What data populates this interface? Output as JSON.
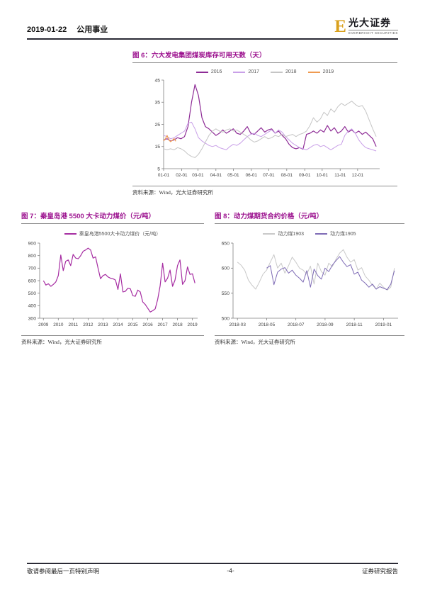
{
  "header": {
    "date": "2019-01-22",
    "section": "公用事业",
    "logo": {
      "symbol": "E",
      "name": "光大证券",
      "subtitle": "EVERBRIGHT SECURITIES",
      "gold": "#D9A01C"
    }
  },
  "accent_color": "#9C128F",
  "chart_data": [
    {
      "id": "fig6",
      "type": "line",
      "title": "图 6：六大发电集团煤炭库存可用天数（天）",
      "source": "资料来源：Wind，光大证券研究所",
      "legend_position": "top-center",
      "grid": false,
      "x_axis": {
        "min": 0,
        "max": 372,
        "tick_positions": [
          0,
          31,
          59,
          90,
          120,
          151,
          181,
          212,
          243,
          273,
          304,
          334
        ],
        "tick_labels": [
          "01-01",
          "02-01",
          "03-01",
          "04-01",
          "05-01",
          "06-01",
          "07-01",
          "08-01",
          "09-01",
          "10-01",
          "11-01",
          "12-01"
        ]
      },
      "y_axis": {
        "min": 5,
        "max": 45,
        "ticks": [
          5,
          15,
          25,
          35,
          45
        ]
      },
      "series": [
        {
          "name": "2016",
          "color": "#8E2C96",
          "width": 1.2,
          "x_start": 0,
          "x_step": 6,
          "values": [
            18,
            18.5,
            17.5,
            18,
            19,
            18.5,
            19.5,
            24,
            35,
            43,
            38,
            28,
            24,
            23,
            21.5,
            20,
            21,
            22.5,
            21,
            22,
            23,
            21,
            20.5,
            22,
            24,
            21,
            20.5,
            22,
            23.5,
            21.5,
            22.5,
            23,
            21,
            22,
            20,
            18.5,
            16,
            14.5,
            14,
            14.5,
            13.8,
            20.5,
            21,
            22,
            21,
            22.5,
            21.5,
            24.5,
            22,
            23.5,
            21,
            22,
            24,
            21.5,
            22.5,
            21,
            22,
            20.5,
            21.5,
            20,
            18.5,
            15
          ]
        },
        {
          "name": "2017",
          "color": "#C9A0E8",
          "width": 1,
          "x_start": 0,
          "x_step": 6,
          "values": [
            20,
            19.5,
            18.5,
            19,
            20,
            21,
            22,
            25.5,
            26,
            23,
            19,
            17.5,
            16.5,
            15.5,
            15,
            15.5,
            14.5,
            14,
            13.5,
            15,
            16,
            15.5,
            16.5,
            18,
            19.5,
            20.5,
            21,
            20,
            19.5,
            20.5,
            21.5,
            22.5,
            21,
            22.5,
            21.5,
            19.5,
            18,
            16.5,
            15.5,
            14.5,
            14,
            13.5,
            14.5,
            15.5,
            16,
            15,
            15.5,
            14.5,
            13.5,
            14.5,
            15.5,
            16,
            20,
            22,
            23,
            21,
            18,
            16,
            14.5,
            14,
            13.5,
            13
          ]
        },
        {
          "name": "2018",
          "color": "#C5C5C5",
          "width": 1,
          "x_start": 0,
          "x_step": 6,
          "values": [
            14,
            13.5,
            14,
            13.5,
            14.5,
            14,
            13,
            11.5,
            10.5,
            10,
            11.5,
            14,
            17,
            20,
            22,
            23,
            22,
            21.5,
            22.5,
            23,
            22,
            22.5,
            21.5,
            20.5,
            19.5,
            18,
            17,
            17.5,
            18.5,
            19.5,
            18.5,
            19,
            20,
            19.5,
            20.5,
            19.5,
            20,
            20.5,
            19.5,
            20.5,
            21,
            22,
            24.5,
            28,
            26,
            27.5,
            30.5,
            29,
            32,
            30.5,
            33,
            34.5,
            33.5,
            34.5,
            35.5,
            34,
            33,
            33.5,
            31,
            27,
            23,
            19.5
          ]
        },
        {
          "name": "2019",
          "color": "#EF9B51",
          "width": 1.2,
          "x_start": 0,
          "x_step": 3,
          "values": [
            17.5,
            18.5,
            20,
            18,
            17.2,
            17.8,
            18.6,
            17.4
          ]
        }
      ]
    },
    {
      "id": "fig7",
      "type": "line",
      "title": "图 7：秦皇岛港 5500 大卡动力煤价（元/吨）",
      "source": "资料来源：Wind，光大证券研究所",
      "legend_position": "top-center",
      "grid": false,
      "x_axis": {
        "min": 2008.75,
        "max": 2019.35,
        "tick_positions": [
          2009,
          2010,
          2011,
          2012,
          2013,
          2014,
          2015,
          2016,
          2017,
          2018,
          2019
        ],
        "tick_labels": [
          "2009",
          "2010",
          "2011",
          "2012",
          "2013",
          "2014",
          "2015",
          "2016",
          "2017",
          "2018",
          "2019"
        ]
      },
      "y_axis": {
        "min": 300,
        "max": 900,
        "ticks": [
          300,
          400,
          500,
          600,
          700,
          800,
          900
        ]
      },
      "series": [
        {
          "name": "秦皇岛港5500大卡动力煤价（元/吨）",
          "color": "#A62DA2",
          "width": 1.2,
          "x_start": 2009,
          "x_step": 0.1667,
          "values": [
            600,
            565,
            575,
            555,
            570,
            590,
            640,
            805,
            680,
            755,
            765,
            720,
            810,
            780,
            775,
            800,
            835,
            845,
            860,
            845,
            780,
            790,
            700,
            615,
            640,
            650,
            630,
            620,
            615,
            605,
            530,
            655,
            510,
            515,
            540,
            535,
            480,
            475,
            525,
            510,
            430,
            410,
            380,
            350,
            360,
            375,
            450,
            560,
            740,
            590,
            620,
            685,
            555,
            605,
            720,
            765,
            570,
            600,
            710,
            650,
            655,
            580
          ]
        }
      ]
    },
    {
      "id": "fig8",
      "type": "line",
      "title": "图 8：动力煤期货合约价格（元/吨）",
      "source": "资料来源：Wind，光大证券研究所",
      "legend_position": "top-center",
      "grid": false,
      "x_axis": {
        "min": -0.3,
        "max": 11.0,
        "tick_positions": [
          0,
          2,
          4,
          6,
          8,
          10
        ],
        "tick_labels": [
          "2018-03",
          "2018-05",
          "2018-07",
          "2018-09",
          "2018-11",
          "2019-01"
        ]
      },
      "y_axis": {
        "min": 500,
        "max": 650,
        "ticks": [
          500,
          550,
          600,
          650
        ]
      },
      "series": [
        {
          "name": "动力煤1903",
          "color": "#C9C9C9",
          "width": 1,
          "x_start": 0,
          "x_step": 0.25,
          "values": [
            612,
            606,
            596,
            576,
            566,
            558,
            572,
            588,
            596,
            612,
            627,
            600,
            610,
            590,
            605,
            622,
            612,
            600,
            596,
            588,
            604,
            568,
            610,
            593,
            586,
            610,
            603,
            618,
            630,
            637,
            622,
            612,
            617,
            596,
            601,
            584,
            576,
            566,
            558,
            570,
            562,
            556,
            562,
            600
          ]
        },
        {
          "name": "动力煤1905",
          "color": "#7E6BB5",
          "width": 1,
          "x_start": 2.0,
          "x_step": 0.25,
          "values": [
            600,
            605,
            567,
            592,
            598,
            601,
            590,
            596,
            586,
            580,
            572,
            595,
            562,
            598,
            585,
            578,
            600,
            593,
            606,
            615,
            623,
            612,
            603,
            607,
            588,
            592,
            576,
            570,
            562,
            568,
            558,
            563,
            560,
            557,
            568,
            595
          ]
        }
      ]
    }
  ],
  "footer": {
    "disclaimer": "敬请参阅最后一页特别声明",
    "page_number": "-4-",
    "report_type": "证券研究报告"
  }
}
